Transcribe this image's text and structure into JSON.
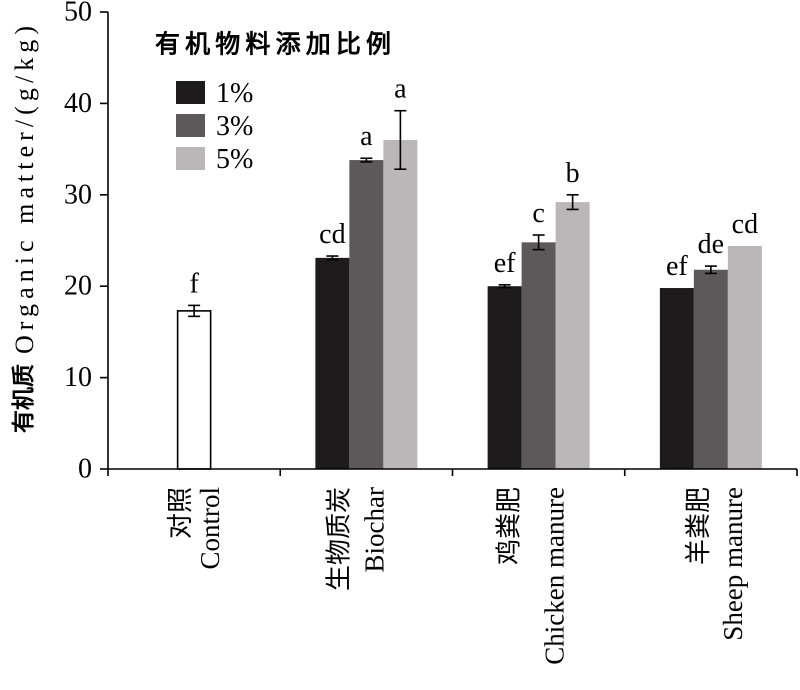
{
  "chart_data": {
    "type": "bar",
    "ylabel": {
      "zh": "有机质",
      "en": "Organic matter/(g/kg)"
    },
    "ylim": [
      0,
      50
    ],
    "yticks": [
      0,
      10,
      20,
      30,
      40,
      50
    ],
    "grid": false,
    "legend": {
      "title": "有机物料添加比例",
      "position": "top-left"
    },
    "categories": [
      {
        "zh": "对照",
        "en": "Control"
      },
      {
        "zh": "生物质炭",
        "en": "Biochar"
      },
      {
        "zh": "鸡粪肥",
        "en": "Chicken manure"
      },
      {
        "zh": "羊粪肥",
        "en": "Sheep manure"
      }
    ],
    "control": {
      "value": 17.3,
      "error": 0.6,
      "letter": "f",
      "color": "#ffffff",
      "edge_color": "#000000"
    },
    "series": [
      {
        "name": "1%",
        "color": "#1d1b1c",
        "values": [
          null,
          23.1,
          20.0,
          19.8
        ],
        "errors": [
          null,
          0.2,
          0.15,
          0
        ],
        "letters": [
          null,
          "cd",
          "ef",
          "ef"
        ]
      },
      {
        "name": "3%",
        "color": "#5d5859",
        "values": [
          null,
          33.8,
          24.8,
          21.8
        ],
        "errors": [
          null,
          0.2,
          0.8,
          0.4
        ],
        "letters": [
          null,
          "a",
          "c",
          "de"
        ]
      },
      {
        "name": "5%",
        "color": "#bbb6b7",
        "values": [
          null,
          36.0,
          29.2,
          24.4
        ],
        "errors": [
          null,
          3.2,
          0.8,
          0
        ],
        "letters": [
          null,
          "a",
          "b",
          "cd"
        ]
      }
    ]
  }
}
